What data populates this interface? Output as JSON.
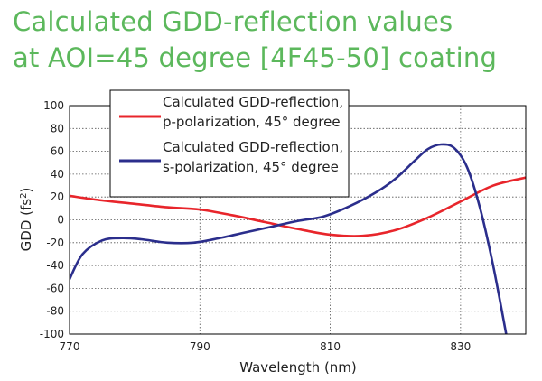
{
  "chart_data": {
    "type": "line",
    "title_lines": [
      "Calculated GDD-reflection values",
      "at AOI=45 degree [4F45-50] coating"
    ],
    "xlabel": "Wavelength (nm)",
    "ylabel_main": "GDD (fs",
    "ylabel_sup": "2",
    "ylabel_tail": ")",
    "xlim": [
      770,
      840
    ],
    "ylim": [
      -100,
      100
    ],
    "x_ticks": [
      770,
      790,
      810,
      830
    ],
    "x_tick_labels": [
      "770",
      "790",
      "810",
      "830"
    ],
    "y_ticks": [
      100,
      80,
      60,
      40,
      20,
      0,
      -20,
      -40,
      -60,
      -80,
      -100
    ],
    "y_tick_labels": [
      "100",
      "80",
      "60",
      "40",
      "20",
      "0",
      "-20",
      "-40",
      "-60",
      "-80",
      "-100"
    ],
    "grid": true,
    "legend_position": "top-center",
    "series": [
      {
        "name": "Calculated GDD-reflection, p-polarization, 45° degree",
        "legend_line1": "Calculated GDD-reflection,",
        "legend_line2": "p-polarization, 45° degree",
        "color": "#e8252b",
        "x": [
          770,
          775,
          780,
          785,
          790,
          795,
          800,
          805,
          810,
          815,
          820,
          825,
          830,
          835,
          840
        ],
        "y": [
          21,
          17,
          14,
          11,
          9,
          4,
          -2,
          -8,
          -13,
          -14,
          -9,
          2,
          16,
          30,
          37
        ]
      },
      {
        "name": "Calculated GDD-reflection, s-polarization, 45° degree",
        "legend_line1": "Calculated GDD-reflection,",
        "legend_line2": "s-polarization, 45° degree",
        "color": "#2b2e8c",
        "x": [
          770,
          772,
          775,
          778,
          781,
          785,
          789,
          793,
          797,
          801,
          805,
          809,
          813,
          817,
          820,
          823,
          825,
          827,
          829,
          831,
          833,
          835,
          837
        ],
        "y": [
          -52,
          -30,
          -18,
          -16,
          -17,
          -20,
          -20,
          -16,
          -11,
          -6,
          -1,
          3,
          12,
          24,
          36,
          52,
          62,
          66,
          63,
          46,
          10,
          -40,
          -100
        ]
      }
    ]
  }
}
